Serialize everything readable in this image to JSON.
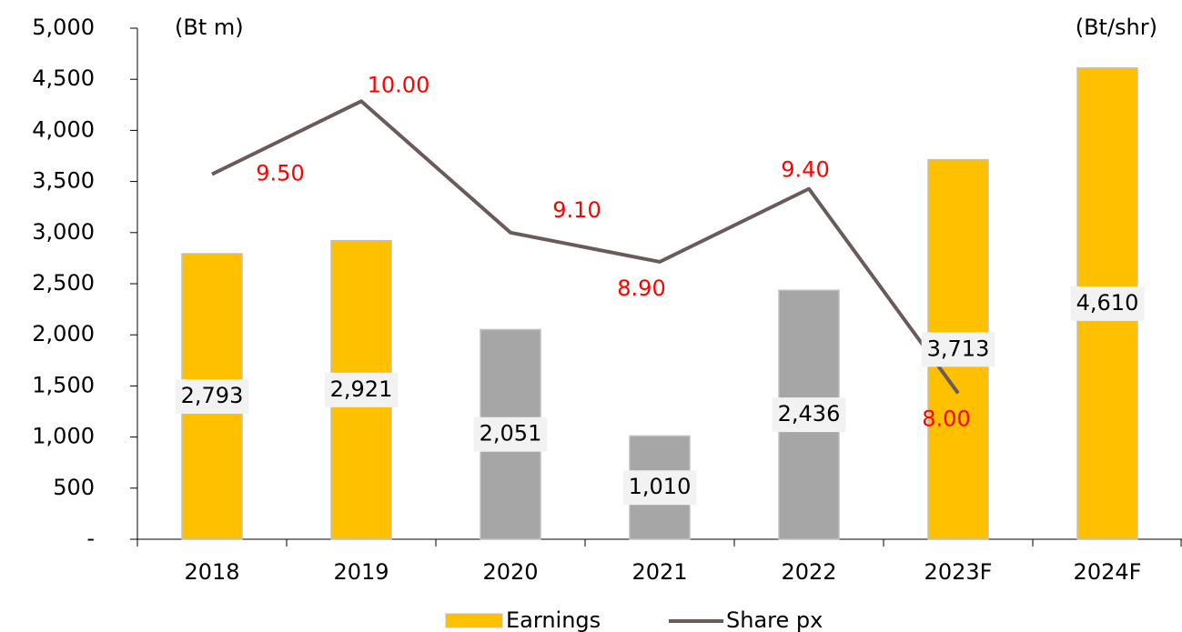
{
  "chart_data": {
    "type": "bar_line",
    "y_label": "(Bt m)",
    "y2_label": "(Bt/shr)",
    "categories": [
      "2018",
      "2019",
      "2020",
      "2021",
      "2022",
      "2023F",
      "2024F"
    ],
    "ylim": [
      0,
      5000
    ],
    "yticks": [
      {
        "value": 0,
        "label": "-"
      },
      500,
      {
        "value": 1000,
        "label": "1,000"
      },
      {
        "value": 1500,
        "label": "1,500"
      },
      {
        "value": 2000,
        "label": "2,000"
      },
      {
        "value": 2500,
        "label": "2,500"
      },
      {
        "value": 3000,
        "label": "3,000"
      },
      {
        "value": 3500,
        "label": "3,500"
      },
      {
        "value": 4000,
        "label": "4,000"
      },
      {
        "value": 4500,
        "label": "4,500"
      },
      {
        "value": 5000,
        "label": "5,000"
      }
    ],
    "y2lim": [
      7,
      10.5
    ],
    "series": [
      {
        "name": "Earnings",
        "color": "#FFC000",
        "colors": [
          "#FFC000",
          "#FFC000",
          "#A6A6A6",
          "#A6A6A6",
          "#A6A6A6",
          "#FFC000",
          "#FFC000"
        ],
        "values": [
          2793,
          2921,
          2051,
          1010,
          2436,
          3713,
          4610
        ],
        "value_labels": [
          "2,793",
          "2,921",
          "2,051",
          "1,010",
          "2,436",
          "3,713",
          "4,610"
        ]
      },
      {
        "name": "Share px",
        "color": "#6B5A5A",
        "axis": "y2",
        "label_color": "#FF0000",
        "values": [
          9.5,
          10,
          9.1,
          8.9,
          9.4,
          8,
          null
        ],
        "value_labels": [
          "9.50",
          "10.00",
          "9.10",
          "8.90",
          "9.40",
          "8.00",
          null
        ]
      }
    ]
  }
}
